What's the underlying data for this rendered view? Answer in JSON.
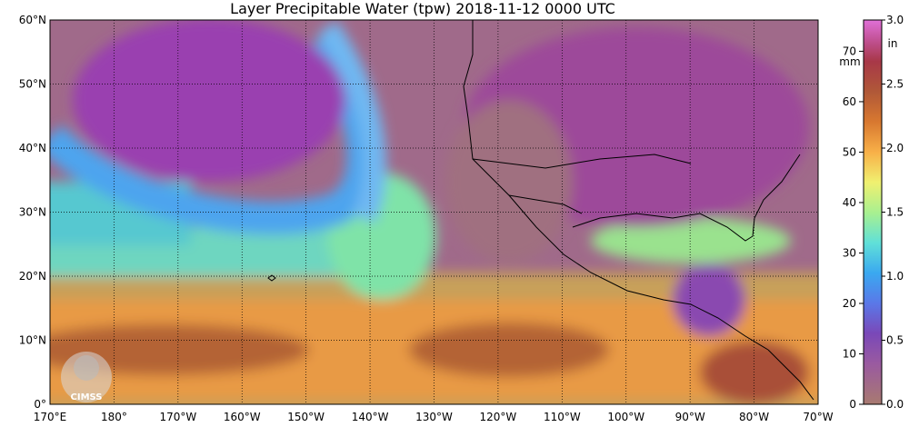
{
  "title": "Layer Precipitable Water (tpw)  2018-11-12 0000 UTC",
  "logo_text": "CIMSS",
  "map": {
    "lat_labels": [
      "60°N",
      "50°N",
      "40°N",
      "30°N",
      "20°N",
      "10°N",
      "0°"
    ],
    "lon_labels": [
      "170°E",
      "180°",
      "170°W",
      "160°W",
      "150°W",
      "140°W",
      "130°W",
      "120°W",
      "110°W",
      "100°W",
      "90°W",
      "80°W",
      "70°W"
    ],
    "lat_range": [
      0,
      60
    ],
    "lon_range": [
      "170°E",
      "70°W"
    ],
    "grid": "dotted"
  },
  "colorbar": {
    "left_unit": "mm",
    "right_unit": "in",
    "mm_ticks": [
      "70",
      "60",
      "50",
      "40",
      "30",
      "20",
      "10",
      "0"
    ],
    "mm_values": [
      70,
      60,
      50,
      40,
      30,
      20,
      10,
      0
    ],
    "in_ticks": [
      "3.0",
      "2.5",
      "2.0",
      "1.5",
      "1.0",
      "0.5",
      "0.0"
    ],
    "in_values": [
      3.0,
      2.5,
      2.0,
      1.5,
      1.0,
      0.5,
      0.0
    ],
    "range_mm": [
      0,
      76.2
    ],
    "stops": [
      {
        "mm": 0,
        "color": "#a87a70"
      },
      {
        "mm": 8,
        "color": "#9a5aa0"
      },
      {
        "mm": 14,
        "color": "#7a48b8"
      },
      {
        "mm": 20,
        "color": "#5a78e8"
      },
      {
        "mm": 26,
        "color": "#3aa8f0"
      },
      {
        "mm": 32,
        "color": "#60e0d8"
      },
      {
        "mm": 38,
        "color": "#a8f090"
      },
      {
        "mm": 44,
        "color": "#f0f070"
      },
      {
        "mm": 50,
        "color": "#f8b048"
      },
      {
        "mm": 56,
        "color": "#d87830"
      },
      {
        "mm": 62,
        "color": "#b05838"
      },
      {
        "mm": 68,
        "color": "#a83848"
      },
      {
        "mm": 72,
        "color": "#c05090"
      },
      {
        "mm": 76.2,
        "color": "#e070d8"
      }
    ]
  }
}
